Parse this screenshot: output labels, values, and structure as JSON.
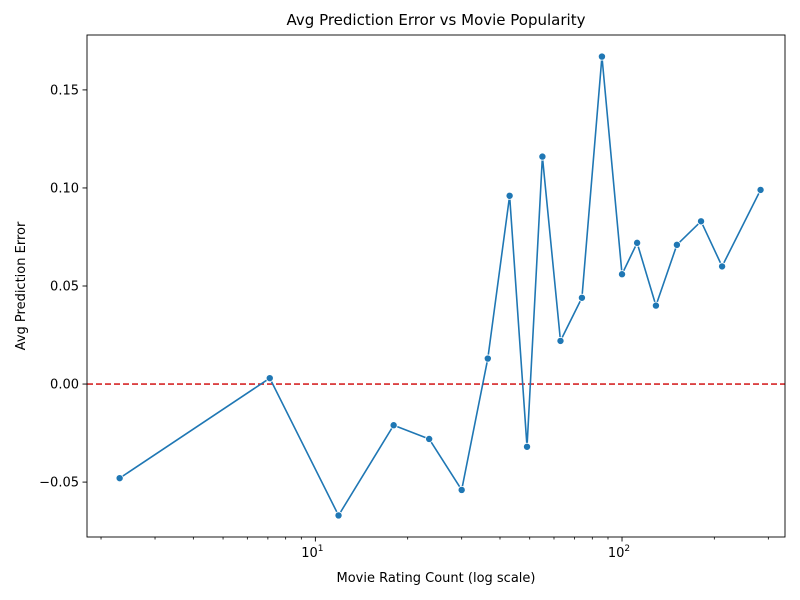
{
  "chart_data": {
    "type": "line",
    "title": "Avg Prediction Error vs Movie Popularity",
    "xlabel": "Movie Rating Count (log scale)",
    "ylabel": "Avg Prediction Error",
    "x_scale": "log",
    "xlim": [
      1.8,
      340
    ],
    "ylim": [
      -0.078,
      0.178
    ],
    "x_ticks": [
      {
        "value": 10,
        "label": "10",
        "sup": "1"
      },
      {
        "value": 100,
        "label": "10",
        "sup": "2"
      }
    ],
    "y_ticks": [
      {
        "value": -0.05,
        "label": "−0.05"
      },
      {
        "value": 0.0,
        "label": "0.00"
      },
      {
        "value": 0.05,
        "label": "0.05"
      },
      {
        "value": 0.1,
        "label": "0.10"
      },
      {
        "value": 0.15,
        "label": "0.15"
      }
    ],
    "reference_line": {
      "y": 0,
      "color": "#d62728",
      "style": "dashed"
    },
    "line_color": "#1f77b4",
    "grid": false,
    "series": [
      {
        "points": [
          {
            "x": 2.3,
            "y": -0.048
          },
          {
            "x": 7.1,
            "y": 0.003
          },
          {
            "x": 11.9,
            "y": -0.067
          },
          {
            "x": 18.0,
            "y": -0.021
          },
          {
            "x": 23.5,
            "y": -0.028
          },
          {
            "x": 30.0,
            "y": -0.054
          },
          {
            "x": 36.5,
            "y": 0.013
          },
          {
            "x": 43.0,
            "y": 0.096
          },
          {
            "x": 49.0,
            "y": -0.032
          },
          {
            "x": 55.0,
            "y": 0.116
          },
          {
            "x": 63.0,
            "y": 0.022
          },
          {
            "x": 74.0,
            "y": 0.044
          },
          {
            "x": 86.0,
            "y": 0.167
          },
          {
            "x": 100.0,
            "y": 0.056
          },
          {
            "x": 112.0,
            "y": 0.072
          },
          {
            "x": 129.0,
            "y": 0.04
          },
          {
            "x": 151.0,
            "y": 0.071
          },
          {
            "x": 181.0,
            "y": 0.083
          },
          {
            "x": 212.0,
            "y": 0.06
          },
          {
            "x": 283.0,
            "y": 0.099
          }
        ]
      }
    ]
  }
}
